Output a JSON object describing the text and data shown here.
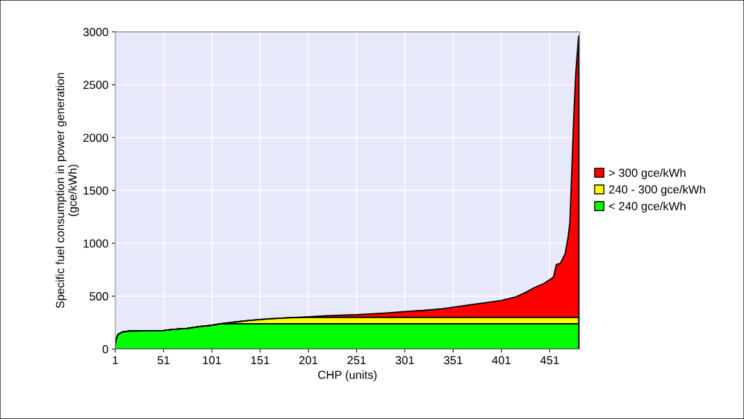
{
  "chart_data": {
    "type": "area",
    "stacked": true,
    "xlabel": "CHP (units)",
    "ylabel": "Specific fuel consumption in power generation\n(gce/kWh)",
    "x": [
      1,
      2,
      4,
      8,
      15,
      30,
      51,
      60,
      75,
      90,
      101,
      110,
      125,
      140,
      160,
      180,
      201,
      220,
      251,
      280,
      301,
      320,
      340,
      351,
      370,
      390,
      401,
      415,
      425,
      435,
      445,
      450,
      455,
      458,
      462,
      467,
      470,
      472,
      474,
      476,
      478,
      481
    ],
    "series": [
      {
        "name": "< 240 gce/kWh",
        "color": "#00ff00",
        "values": [
          40,
          100,
          140,
          160,
          170,
          172,
          175,
          185,
          195,
          215,
          225,
          240,
          240,
          240,
          240,
          240,
          240,
          240,
          240,
          240,
          240,
          240,
          240,
          240,
          240,
          240,
          240,
          240,
          240,
          240,
          240,
          240,
          240,
          240,
          240,
          240,
          240,
          240,
          240,
          240,
          240,
          240
        ]
      },
      {
        "name": "240 - 300 gce/kWh",
        "color": "#ffff00",
        "values": [
          0,
          0,
          0,
          0,
          0,
          0,
          0,
          0,
          0,
          0,
          0,
          0,
          15,
          30,
          45,
          55,
          60,
          60,
          60,
          60,
          60,
          60,
          60,
          60,
          60,
          60,
          60,
          60,
          60,
          60,
          60,
          60,
          60,
          60,
          60,
          60,
          60,
          60,
          60,
          60,
          60,
          60
        ]
      },
      {
        "name": "> 300 gce/kWh",
        "color": "#ff0000",
        "values": [
          0,
          0,
          0,
          0,
          0,
          0,
          0,
          0,
          0,
          0,
          0,
          0,
          0,
          0,
          0,
          0,
          5,
          15,
          25,
          40,
          55,
          65,
          80,
          95,
          120,
          145,
          160,
          190,
          230,
          280,
          320,
          350,
          380,
          500,
          510,
          600,
          750,
          900,
          1400,
          1900,
          2300,
          2660
        ]
      }
    ],
    "xlim": [
      1,
      482
    ],
    "xticks": [
      1,
      51,
      101,
      151,
      201,
      251,
      301,
      351,
      401,
      451
    ],
    "ylim": [
      0,
      3000
    ],
    "yticks": [
      0,
      500,
      1000,
      1500,
      2000,
      2500,
      3000
    ],
    "grid": true,
    "legend": "right"
  }
}
